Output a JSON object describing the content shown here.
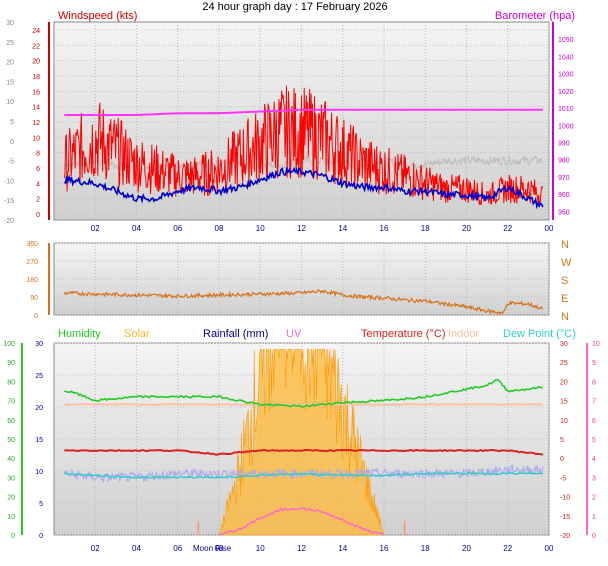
{
  "header": {
    "title": "24 hour graph day : 17 February 2026"
  },
  "colors": {
    "windspeed": "#ff0000",
    "gust_grey": "#c0c0c0",
    "avg_blue": "#0000cc",
    "barometer": "#ff33ff",
    "direction": "#d4731a",
    "humidity": "#22cc22",
    "solar": "#ffb833",
    "rainfall": "#000099",
    "uv": "#ff66cc",
    "temperature": "#dd2222",
    "indoor": "#ffbfa0",
    "dewpoint": "#33cccc",
    "apparent": "#aaaaee"
  },
  "chart_data": [
    {
      "type": "line",
      "id": "wind-baro",
      "title": "24 hour graph day : 17 February 2026",
      "left_axis_label": "Windspeed (kts)",
      "right_axis_label": "Barometer (hpa)",
      "x_ticks": [
        "02",
        "04",
        "06",
        "08",
        "10",
        "12",
        "14",
        "16",
        "18",
        "20",
        "22",
        "00"
      ],
      "y_left_outer": {
        "range": [
          -20,
          30
        ],
        "ticks": [
          "30",
          "25",
          "20",
          "15",
          "10",
          "5",
          "0",
          "-5",
          "-10",
          "-15",
          "-20"
        ]
      },
      "y_left_inner": {
        "range": [
          0,
          25
        ],
        "ticks": [
          "24",
          "22",
          "20",
          "18",
          "16",
          "14",
          "12",
          "10",
          "8",
          "6",
          "4",
          "2",
          "0"
        ]
      },
      "y_right": {
        "range": [
          945,
          1060
        ],
        "ticks": [
          "1050",
          "1040",
          "1030",
          "1020",
          "1010",
          "1000",
          "990",
          "980",
          "970",
          "960",
          "950"
        ]
      },
      "series": [
        {
          "name": "Windspeed (kts)",
          "key": "gust",
          "x": [
            0.5,
            2,
            3,
            4,
            5,
            6,
            7,
            8,
            9,
            10,
            11,
            12,
            13,
            14,
            15,
            16,
            17,
            18,
            19,
            20,
            21,
            22,
            23,
            23.7
          ],
          "values": [
            8,
            12,
            10,
            8,
            7,
            6,
            6,
            7,
            9,
            11,
            13,
            13,
            12,
            10,
            8,
            7,
            6,
            5,
            4,
            4,
            3,
            4,
            4,
            3
          ]
        },
        {
          "name": "",
          "key": "avg",
          "x": [
            0.5,
            2,
            3,
            4,
            5,
            6,
            7,
            8,
            9,
            10,
            11,
            12,
            13,
            14,
            15,
            16,
            17,
            18,
            19,
            20,
            21,
            22,
            23,
            23.7
          ],
          "values": [
            4.5,
            4,
            3,
            2,
            2,
            3,
            3.5,
            3,
            3.5,
            4.5,
            5.5,
            5.5,
            5,
            4,
            3.5,
            3.5,
            3,
            3,
            2.5,
            2.5,
            2,
            3.5,
            2,
            1
          ]
        },
        {
          "name": "",
          "key": "grey",
          "x": [
            0.5,
            2,
            3,
            4,
            5,
            6,
            7,
            8,
            9,
            10,
            11,
            12,
            13,
            14,
            15,
            16,
            17,
            18,
            19,
            20,
            21,
            22,
            23,
            23.7
          ],
          "values": [
            -6,
            -5,
            -6,
            -7,
            -7,
            -6,
            -6,
            -6,
            -6,
            -6,
            -6,
            -5,
            -5,
            -6,
            -6,
            -5,
            -6,
            -6,
            -5,
            -5,
            -5,
            -5,
            -5,
            -5
          ]
        },
        {
          "name": "Barometer (hpa)",
          "key": "baro",
          "x": [
            0.5,
            4,
            6,
            8,
            10,
            12,
            14,
            16,
            18,
            20,
            22,
            23.7
          ],
          "values": [
            1006,
            1006,
            1007,
            1007,
            1008,
            1009,
            1009,
            1009,
            1009,
            1009,
            1009,
            1009
          ]
        }
      ]
    },
    {
      "type": "line",
      "id": "direction",
      "y_left": {
        "range": [
          0,
          360
        ],
        "ticks": [
          "360",
          "270",
          "180",
          "90",
          "0"
        ]
      },
      "y_right_labels": [
        "N",
        "W",
        "S",
        "E",
        "N"
      ],
      "series": [
        {
          "name": "",
          "key": "dir",
          "x": [
            0.5,
            2,
            4,
            6,
            8,
            10,
            12,
            13,
            14,
            15,
            16,
            17,
            18,
            19,
            20,
            21,
            21.8,
            22,
            23,
            23.7
          ],
          "values": [
            110,
            105,
            100,
            95,
            100,
            105,
            110,
            120,
            100,
            90,
            85,
            75,
            70,
            55,
            40,
            20,
            10,
            60,
            55,
            30
          ]
        }
      ]
    },
    {
      "type": "line",
      "id": "multi",
      "legend": [
        "Humidity",
        "Solar",
        "Rainfall (mm)",
        "UV",
        "Temperature (°C)",
        "Indoor",
        "Dew Point (°C)"
      ],
      "x_ticks": [
        "02",
        "04",
        "06",
        "08",
        "10",
        "12",
        "14",
        "16",
        "18",
        "20",
        "22",
        "00"
      ],
      "annotations": [
        "Moon Rise"
      ],
      "y_humidity": {
        "range": [
          0,
          100
        ],
        "ticks": [
          "100",
          "90",
          "80",
          "70",
          "60",
          "50",
          "40",
          "30",
          "20",
          "10",
          "0"
        ]
      },
      "y_rain": {
        "range": [
          0,
          30
        ],
        "ticks": [
          "30",
          "25",
          "20",
          "15",
          "10",
          "5",
          "0"
        ]
      },
      "y_temp": {
        "range": [
          -20,
          30
        ],
        "ticks": [
          "30",
          "25",
          "20",
          "15",
          "10",
          "5",
          "0",
          "-5",
          "-10",
          "-15",
          "-20"
        ]
      },
      "y_uv": {
        "range": [
          0,
          10
        ],
        "ticks": [
          "10",
          "9",
          "8",
          "7",
          "6",
          "5",
          "4",
          "3",
          "2",
          "1",
          "0"
        ]
      },
      "series": [
        {
          "name": "Humidity",
          "key": "humidity",
          "x": [
            0.5,
            1,
            2,
            4,
            6,
            8,
            10,
            12,
            14,
            16,
            18,
            20,
            21,
            21.5,
            22,
            23,
            23.7
          ],
          "values": [
            75,
            74,
            70,
            72,
            72,
            72,
            68,
            67,
            69,
            70,
            72,
            76,
            78,
            81,
            75,
            76,
            77
          ]
        },
        {
          "name": "Temperature (°C)",
          "key": "temp",
          "x": [
            0.5,
            2,
            4,
            6,
            8,
            10,
            12,
            14,
            16,
            18,
            20,
            22,
            23.7
          ],
          "values": [
            2,
            2,
            2,
            2,
            1,
            2,
            2,
            2,
            2,
            2,
            2,
            2,
            1
          ]
        },
        {
          "name": "Indoor",
          "key": "indoor",
          "x": [
            0.5,
            4,
            8,
            12,
            16,
            20,
            23.7
          ],
          "values": [
            14,
            14,
            14,
            14,
            14,
            14,
            14
          ]
        },
        {
          "name": "Dew Point (°C)",
          "key": "dew",
          "x": [
            0.5,
            2,
            4,
            6,
            8,
            10,
            12,
            14,
            16,
            18,
            20,
            22,
            23.7
          ],
          "values": [
            -4,
            -4.5,
            -5,
            -5,
            -5,
            -4.5,
            -4,
            -4.5,
            -4.5,
            -4,
            -4,
            -4,
            -4
          ]
        },
        {
          "name": "",
          "key": "apparent",
          "x": [
            0.5,
            2,
            4,
            6,
            8,
            10,
            12,
            14,
            16,
            18,
            20,
            22,
            23.7
          ],
          "values": [
            -4,
            -5,
            -5,
            -4,
            -4,
            -4,
            -4,
            -4,
            -4,
            -4,
            -4,
            -3,
            -3
          ]
        },
        {
          "name": "Solar",
          "key": "solar",
          "x": [
            8,
            9,
            10,
            11,
            12,
            13,
            14,
            15,
            16
          ],
          "values": [
            0,
            10,
            25,
            40,
            35,
            30,
            20,
            10,
            0
          ]
        },
        {
          "name": "UV",
          "key": "uv",
          "x": [
            8,
            9,
            10,
            11,
            12,
            13,
            14,
            15,
            16
          ],
          "values": [
            0,
            0.3,
            0.9,
            1.3,
            1.4,
            1.2,
            0.8,
            0.3,
            0
          ]
        }
      ]
    }
  ]
}
